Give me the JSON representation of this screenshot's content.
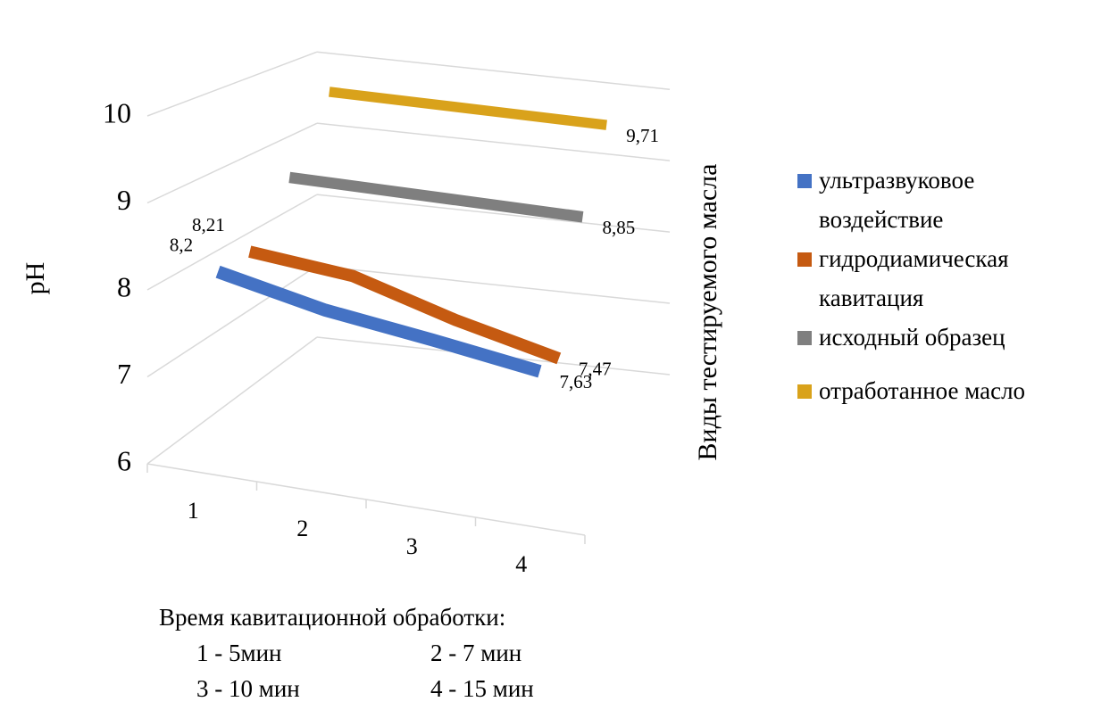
{
  "chart_data": {
    "type": "line3d",
    "y_label": "pH",
    "depth_label": "Виды тестируемого масла",
    "categories": [
      "1",
      "2",
      "3",
      "4"
    ],
    "ylim": [
      6,
      10
    ],
    "yticks": [
      6,
      7,
      8,
      9,
      10
    ],
    "grid": true,
    "legend": "right",
    "series": [
      {
        "name": "ультразвуковое воздействие",
        "color": "#4472c4",
        "values": [
          8.2,
          7.95,
          7.8,
          7.63
        ],
        "value_labels": [
          "8,2",
          null,
          null,
          "7,63"
        ]
      },
      {
        "name": "гидродиамическая кавитация",
        "color": "#c55a11",
        "values": [
          8.21,
          8.1,
          7.75,
          7.47
        ],
        "value_labels": [
          "8,21",
          null,
          null,
          "7,47"
        ]
      },
      {
        "name": "исходный образец",
        "color": "#7f7f7f",
        "values": [
          8.85,
          8.85,
          8.85,
          8.85
        ],
        "value_labels": [
          null,
          null,
          null,
          "8,85"
        ]
      },
      {
        "name": "отработанное масло",
        "color": "#d9a21b",
        "values": [
          9.71,
          9.71,
          9.71,
          9.71
        ],
        "value_labels": [
          null,
          null,
          null,
          "9,71"
        ]
      }
    ],
    "note": [
      "Время кавитационной обработки:",
      "1 - 5мин",
      "2 - 7 мин",
      "3 - 10 мин",
      "4 - 15 мин"
    ]
  }
}
